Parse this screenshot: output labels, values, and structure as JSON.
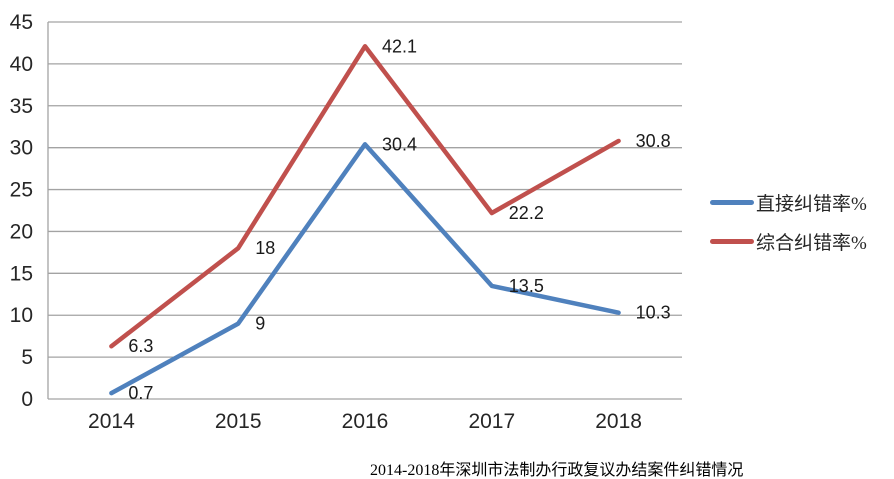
{
  "chart_data": {
    "type": "line",
    "title": "2014-2018年深圳市法制办行政复议办结案件纠错情况",
    "categories": [
      "2014",
      "2015",
      "2016",
      "2017",
      "2018"
    ],
    "series": [
      {
        "name": "直接纠错率%",
        "color": "#4F81BD",
        "values": [
          0.7,
          9,
          30.4,
          13.5,
          10.3
        ]
      },
      {
        "name": "综合纠错率%",
        "color": "#C0504D",
        "values": [
          6.3,
          18,
          42.1,
          22.2,
          30.8
        ]
      }
    ],
    "ylim": [
      0,
      45
    ],
    "ytick_step": 5,
    "grid": "horizontal",
    "legend_position": "right",
    "axis_color": "#A3A3A3",
    "text_color": "#262626"
  }
}
